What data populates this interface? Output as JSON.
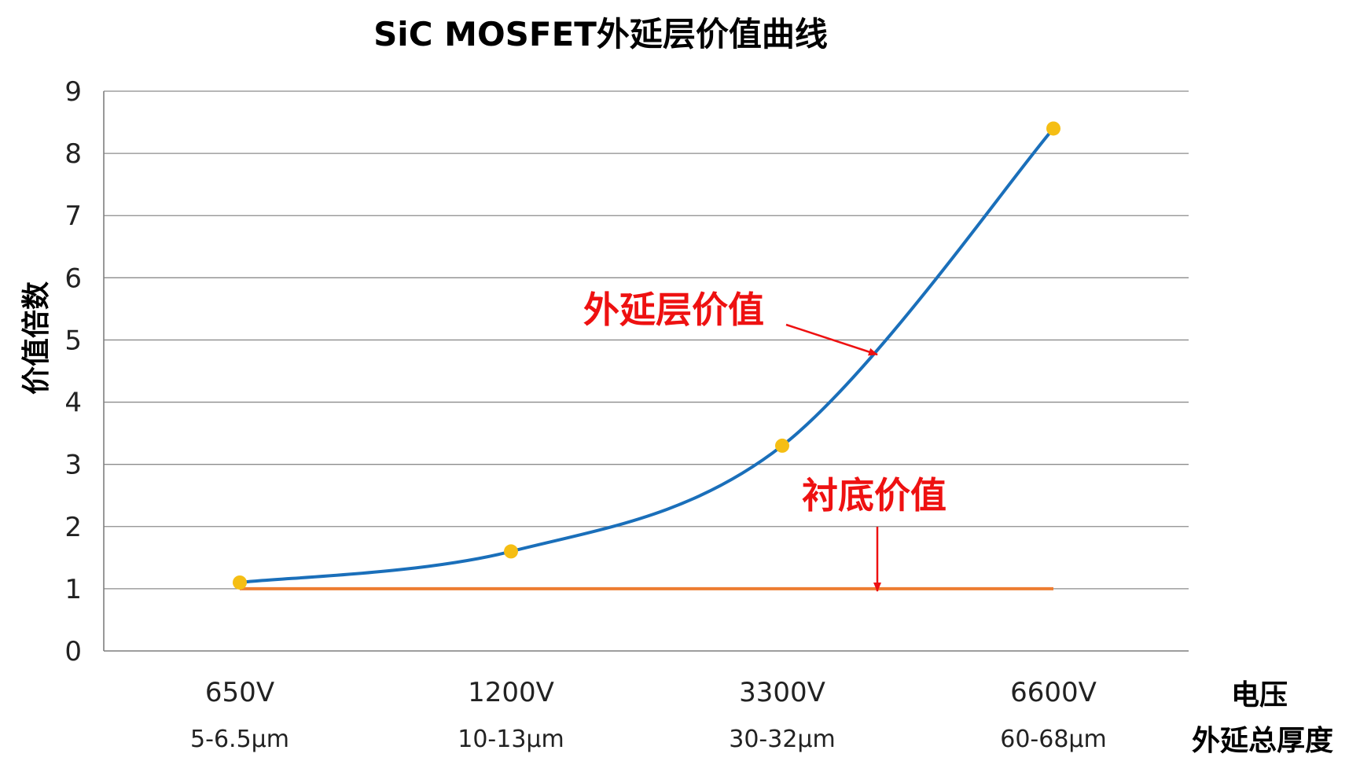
{
  "chart_data": {
    "type": "line",
    "title": "SiC MOSFET外延层价值曲线",
    "ylabel": "价值倍数",
    "xlabel": "电压",
    "xlabel2": "外延总厚度",
    "ylim": [
      0,
      9
    ],
    "yticks": [
      "0",
      "1",
      "2",
      "3",
      "4",
      "5",
      "6",
      "7",
      "8",
      "9"
    ],
    "grid": true,
    "categories": [
      "650V",
      "1200V",
      "3300V",
      "6600V"
    ],
    "sublabels": [
      "5-6.5μm",
      "10-13μm",
      "30-32μm",
      "60-68μm"
    ],
    "series": [
      {
        "name": "外延层价值",
        "values": [
          1.1,
          1.6,
          3.3,
          8.4
        ],
        "color": "#1a6fba",
        "marker_color": "#f5be14"
      },
      {
        "name": "衬底价值",
        "values": [
          1,
          1,
          1,
          1
        ],
        "color": "#ed7d31"
      }
    ],
    "annotations": [
      {
        "text": "外延层价值",
        "color": "#ee1111"
      },
      {
        "text": "衬底价值",
        "color": "#ee1111"
      }
    ]
  }
}
